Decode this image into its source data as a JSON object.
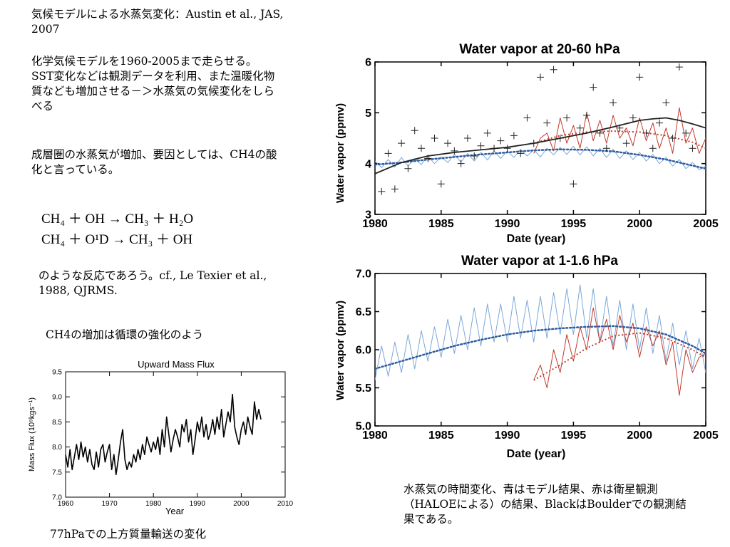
{
  "slide": {
    "heading": "気候モデルによる水蒸気変化：Austin et al., JAS, 2007",
    "paragraph1": "化学気候モデルを1960-2005まで走らせる。SST変化などは観測データを利用、また温暖化物質なども増加させる－＞水蒸気の気候変化をしらべる",
    "paragraph2": "成層圏の水蒸気が増加、要因としては、CH4の酸化と言っている。",
    "eq1_lhs": "CH₄ ＋ OH",
    "eq1_rhs": "CH₃ ＋ H₂O",
    "eq2_lhs": "CH₄ ＋ O¹D",
    "eq2_rhs": "CH₃ ＋ OH",
    "arrow": "→",
    "paragraph3": "のような反応であろう。cf., Le Texier et al., 1988, QJRMS.",
    "paragraph4": "CH4の増加は循環の強化のよう",
    "caption_flux": "77hPaでの上方質量輸送の変化",
    "caption_vapor": "水蒸気の時間変化、青はモデル結果、赤は衛星観測（HALOEによる）の結果、BlackはBoulderでの観測結果である。"
  },
  "chart_data": [
    {
      "type": "line",
      "title": "Upward Mass Flux",
      "xlabel": "Year",
      "ylabel": "Mass Flux (10⁹kgs⁻¹)",
      "xlim": [
        1960,
        2010
      ],
      "ylim": [
        7,
        9.5
      ],
      "xticks": [
        1960,
        1970,
        1980,
        1990,
        2000,
        2010
      ],
      "yticks": [
        7,
        7.5,
        8,
        8.5,
        9,
        9.5
      ],
      "series": [
        {
          "color": "#000000",
          "x": [
            1960,
            1960.5,
            1961,
            1961.5,
            1962,
            1962.5,
            1963,
            1963.5,
            1964,
            1964.5,
            1965,
            1965.5,
            1966,
            1966.5,
            1967,
            1967.5,
            1968,
            1968.5,
            1969,
            1969.5,
            1970,
            1970.5,
            1971,
            1971.5,
            1972,
            1972.5,
            1973,
            1973.5,
            1974,
            1974.5,
            1975,
            1975.5,
            1976,
            1976.5,
            1977,
            1977.5,
            1978,
            1978.5,
            1979,
            1979.5,
            1980,
            1980.5,
            1981,
            1981.5,
            1982,
            1982.5,
            1983,
            1983.5,
            1984,
            1984.5,
            1985,
            1985.5,
            1986,
            1986.5,
            1987,
            1987.5,
            1988,
            1988.5,
            1989,
            1989.5,
            1990,
            1990.5,
            1991,
            1991.5,
            1992,
            1992.5,
            1993,
            1993.5,
            1994,
            1994.5,
            1995,
            1995.5,
            1996,
            1996.5,
            1997,
            1997.5,
            1998,
            1998.5,
            1999,
            1999.5,
            2000,
            2000.5,
            2001,
            2001.5,
            2002,
            2002.5,
            2003,
            2003.5,
            2004,
            2004.5
          ],
          "values": [
            7.85,
            7.6,
            7.95,
            7.55,
            7.8,
            8.05,
            7.75,
            8.1,
            7.8,
            8.0,
            7.7,
            7.95,
            7.65,
            7.55,
            7.9,
            7.6,
            7.95,
            8.05,
            7.7,
            7.9,
            8.05,
            7.55,
            7.85,
            7.45,
            7.75,
            8.1,
            8.35,
            7.75,
            7.55,
            7.7,
            7.6,
            7.85,
            7.7,
            7.95,
            7.75,
            8.05,
            7.85,
            8.2,
            8.05,
            7.9,
            8.1,
            7.95,
            8.2,
            7.85,
            8.35,
            8.0,
            8.6,
            8.25,
            7.9,
            8.15,
            8.35,
            8.2,
            8.0,
            8.45,
            8.3,
            8.55,
            8.1,
            8.35,
            7.85,
            8.15,
            8.5,
            8.3,
            8.6,
            8.2,
            8.45,
            8.15,
            8.3,
            8.55,
            8.25,
            8.6,
            8.35,
            8.75,
            8.2,
            8.45,
            8.7,
            8.5,
            9.05,
            8.4,
            8.2,
            8.05,
            8.35,
            8.5,
            8.25,
            8.6,
            8.4,
            8.25,
            8.9,
            8.55,
            8.75,
            8.55
          ]
        }
      ]
    },
    {
      "type": "line",
      "title": "Water vapor at 20-60 hPa",
      "xlabel": "Date (year)",
      "ylabel": "Water vapor (ppmv)",
      "xlim": [
        1980,
        2005
      ],
      "ylim": [
        3,
        6
      ],
      "xticks": [
        1980,
        1985,
        1990,
        1995,
        2000,
        2005
      ],
      "yticks": [
        3,
        4,
        5,
        6
      ],
      "series": [
        {
          "color": "#7BA7D9",
          "style": "thin",
          "x": [
            1980,
            1980.5,
            1981,
            1981.5,
            1982,
            1982.5,
            1983,
            1983.5,
            1984,
            1984.5,
            1985,
            1985.5,
            1986,
            1986.5,
            1987,
            1987.5,
            1988,
            1988.5,
            1989,
            1989.5,
            1990,
            1990.5,
            1991,
            1991.5,
            1992,
            1992.5,
            1993,
            1993.5,
            1994,
            1994.5,
            1995,
            1995.5,
            1996,
            1996.5,
            1997,
            1997.5,
            1998,
            1998.5,
            1999,
            1999.5,
            2000,
            2000.5,
            2001,
            2001.5,
            2002,
            2002.5,
            2003,
            2003.5,
            2004,
            2004.5,
            2005
          ],
          "values": [
            4.05,
            3.92,
            4.08,
            3.93,
            4.12,
            3.95,
            4.1,
            3.98,
            4.15,
            4.0,
            4.13,
            4.02,
            4.18,
            4.03,
            4.2,
            4.05,
            4.22,
            4.07,
            4.25,
            4.1,
            4.25,
            4.12,
            4.28,
            4.15,
            4.27,
            4.13,
            4.3,
            4.17,
            4.32,
            4.18,
            4.34,
            4.17,
            4.33,
            4.15,
            4.3,
            4.12,
            4.28,
            4.1,
            4.25,
            4.08,
            4.22,
            4.05,
            4.18,
            4.0,
            4.12,
            3.95,
            4.08,
            3.9,
            4.02,
            3.88,
            3.95
          ]
        },
        {
          "color": "#2E5C9E",
          "style": "dotted",
          "x": [
            1980,
            1982,
            1984,
            1986,
            1988,
            1990,
            1992,
            1994,
            1996,
            1998,
            2000,
            2002,
            2004,
            2005
          ],
          "values": [
            3.98,
            4.02,
            4.08,
            4.13,
            4.18,
            4.22,
            4.26,
            4.28,
            4.27,
            4.24,
            4.17,
            4.08,
            3.96,
            3.9
          ]
        },
        {
          "color": "#C0392B",
          "style": "thin",
          "x": [
            1992,
            1992.5,
            1993,
            1993.5,
            1994,
            1994.5,
            1995,
            1995.5,
            1996,
            1996.5,
            1997,
            1997.5,
            1998,
            1998.5,
            1999,
            1999.5,
            2000,
            2000.5,
            2001,
            2001.5,
            2002,
            2002.5,
            2003,
            2003.5,
            2004,
            2004.5,
            2005
          ],
          "values": [
            4.2,
            4.5,
            4.6,
            4.25,
            4.9,
            4.4,
            4.75,
            4.3,
            5.0,
            4.45,
            4.85,
            4.4,
            4.95,
            4.5,
            4.7,
            4.35,
            4.9,
            4.45,
            4.8,
            4.3,
            4.7,
            4.2,
            5.1,
            4.4,
            4.7,
            4.2,
            4.5
          ]
        },
        {
          "color": "#C0392B",
          "style": "dashed",
          "x": [
            1992,
            1994,
            1996,
            1998,
            2000,
            2002,
            2004,
            2005
          ],
          "values": [
            4.4,
            4.55,
            4.62,
            4.64,
            4.62,
            4.55,
            4.42,
            4.3
          ]
        },
        {
          "color": "#222222",
          "style": "solid",
          "x": [
            1980,
            1982,
            1984,
            1986,
            1988,
            1990,
            1992,
            1994,
            1996,
            1998,
            2000,
            2001,
            2002,
            2003,
            2004,
            2005
          ],
          "values": [
            3.8,
            4.02,
            4.15,
            4.22,
            4.27,
            4.32,
            4.4,
            4.5,
            4.6,
            4.72,
            4.85,
            4.88,
            4.9,
            4.85,
            4.78,
            4.7
          ]
        },
        {
          "color": "#222222",
          "style": "plus",
          "x": [
            1980.5,
            1981,
            1981.5,
            1982,
            1982.5,
            1983,
            1983.5,
            1984,
            1984.5,
            1985,
            1985.5,
            1986,
            1986.5,
            1987,
            1987.5,
            1988,
            1988.5,
            1989,
            1989.5,
            1990,
            1990.5,
            1991,
            1991.5,
            1992,
            1992.5,
            1993,
            1993.5,
            1994,
            1994.5,
            1995,
            1995.5,
            1996,
            1996.5,
            1997,
            1997.5,
            1998,
            1998.5,
            1999,
            1999.5,
            2000,
            2000.5,
            2001,
            2001.5,
            2002,
            2002.5,
            2003,
            2003.5,
            2004
          ],
          "values": [
            3.45,
            4.2,
            3.5,
            4.4,
            3.9,
            4.65,
            4.3,
            4.1,
            4.5,
            3.6,
            4.4,
            4.25,
            4.0,
            4.5,
            4.15,
            4.35,
            4.6,
            4.3,
            4.45,
            4.3,
            4.55,
            4.2,
            4.9,
            4.4,
            5.7,
            4.8,
            5.85,
            4.5,
            4.9,
            3.6,
            4.7,
            4.95,
            5.5,
            4.6,
            4.3,
            5.2,
            4.7,
            4.4,
            4.9,
            5.7,
            4.6,
            4.3,
            4.8,
            5.2,
            4.5,
            5.9,
            4.6,
            4.3
          ]
        }
      ]
    },
    {
      "type": "line",
      "title": "Water vapor at 1-1.6 hPa",
      "xlabel": "Date (year)",
      "ylabel": "Water vapor (ppmv)",
      "xlim": [
        1980,
        2005
      ],
      "ylim": [
        5.0,
        7.0
      ],
      "xticks": [
        1980,
        1985,
        1990,
        1995,
        2000,
        2005
      ],
      "yticks": [
        5.0,
        5.5,
        6.0,
        6.5,
        7.0
      ],
      "series": [
        {
          "color": "#7BA7D9",
          "style": "thin",
          "x": [
            1980,
            1980.5,
            1981,
            1981.5,
            1982,
            1982.5,
            1983,
            1983.5,
            1984,
            1984.5,
            1985,
            1985.5,
            1986,
            1986.5,
            1987,
            1987.5,
            1988,
            1988.5,
            1989,
            1989.5,
            1990,
            1990.5,
            1991,
            1991.5,
            1992,
            1992.5,
            1993,
            1993.5,
            1994,
            1994.5,
            1995,
            1995.5,
            1996,
            1996.5,
            1997,
            1997.5,
            1998,
            1998.5,
            1999,
            1999.5,
            2000,
            2000.5,
            2001,
            2001.5,
            2002,
            2002.5,
            2003,
            2003.5,
            2004,
            2004.5,
            2005
          ],
          "values": [
            5.6,
            6.05,
            5.65,
            6.1,
            5.7,
            6.2,
            5.75,
            6.25,
            5.85,
            6.3,
            5.9,
            6.4,
            5.95,
            6.45,
            6.0,
            6.55,
            6.05,
            6.6,
            6.1,
            6.6,
            6.1,
            6.7,
            6.15,
            6.65,
            6.1,
            6.7,
            6.15,
            6.75,
            6.2,
            6.8,
            6.2,
            6.85,
            6.15,
            6.8,
            6.1,
            6.7,
            6.05,
            6.65,
            6.0,
            6.6,
            6.0,
            6.55,
            5.95,
            6.45,
            5.85,
            6.35,
            5.8,
            6.25,
            5.75,
            6.15,
            5.7
          ]
        },
        {
          "color": "#2E5C9E",
          "style": "dotted",
          "x": [
            1980,
            1982,
            1984,
            1986,
            1988,
            1990,
            1992,
            1994,
            1996,
            1998,
            2000,
            2002,
            2004,
            2005
          ],
          "values": [
            5.75,
            5.85,
            5.95,
            6.05,
            6.13,
            6.2,
            6.25,
            6.28,
            6.3,
            6.31,
            6.28,
            6.2,
            6.05,
            5.95
          ]
        },
        {
          "color": "#C0392B",
          "style": "thin",
          "x": [
            1992,
            1992.5,
            1993,
            1993.5,
            1994,
            1994.5,
            1995,
            1995.5,
            1996,
            1996.5,
            1997,
            1997.5,
            1998,
            1998.5,
            1999,
            1999.5,
            2000,
            2000.5,
            2001,
            2001.5,
            2002,
            2002.5,
            2003,
            2003.5,
            2004,
            2004.5,
            2005
          ],
          "values": [
            5.6,
            5.8,
            5.5,
            6.0,
            5.7,
            6.2,
            5.85,
            6.3,
            6.0,
            6.55,
            6.1,
            6.4,
            6.0,
            6.45,
            6.1,
            6.35,
            5.9,
            6.3,
            6.05,
            6.25,
            5.8,
            6.1,
            5.4,
            6.0,
            5.7,
            5.9,
            5.95
          ]
        },
        {
          "color": "#C0392B",
          "style": "dashed",
          "x": [
            1992,
            1994,
            1996,
            1998,
            2000,
            2002,
            2004,
            2005
          ],
          "values": [
            5.6,
            5.8,
            6.02,
            6.18,
            6.22,
            6.15,
            6.0,
            5.9
          ]
        }
      ]
    }
  ]
}
